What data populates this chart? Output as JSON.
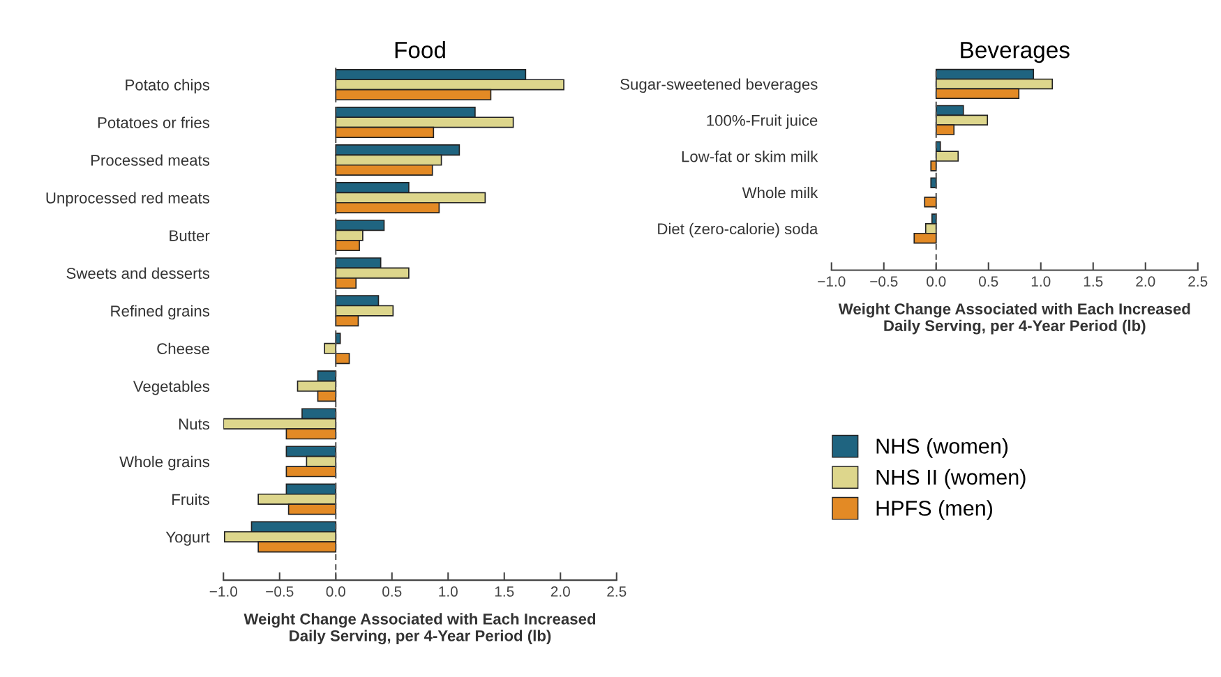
{
  "chart_data": [
    {
      "type": "bar",
      "orientation": "horizontal",
      "title": "Food",
      "xlabel": "Weight Change Associated with Each Increased\nDaily Serving, per 4-Year Period (lb)",
      "categories": [
        "Potato chips",
        "Potatoes or fries",
        "Processed meats",
        "Unprocessed red meats",
        "Butter",
        "Sweets and desserts",
        "Refined grains",
        "Cheese",
        "Vegetables",
        "Nuts",
        "Whole grains",
        "Fruits",
        "Yogurt"
      ],
      "series": [
        {
          "name": "NHS (women)",
          "color": "#1f6480",
          "values": [
            1.69,
            1.24,
            1.1,
            0.65,
            0.43,
            0.4,
            0.38,
            0.04,
            -0.16,
            -0.3,
            -0.44,
            -0.44,
            -0.75
          ]
        },
        {
          "name": "NHS II (women)",
          "color": "#ddd68c",
          "values": [
            2.03,
            1.58,
            0.94,
            1.33,
            0.24,
            0.65,
            0.51,
            -0.1,
            -0.34,
            -1.0,
            -0.26,
            -0.69,
            -0.99
          ]
        },
        {
          "name": "HPFS (men)",
          "color": "#e38a25",
          "values": [
            1.38,
            0.87,
            0.86,
            0.92,
            0.21,
            0.18,
            0.2,
            0.12,
            -0.16,
            -0.44,
            -0.44,
            -0.42,
            -0.69
          ]
        }
      ],
      "xlim": [
        -1.0,
        2.5
      ],
      "xticks": [
        {
          "value": -1.0,
          "label": "−1.0"
        },
        {
          "value": -0.5,
          "label": "−0.5"
        },
        {
          "value": 0,
          "label": "0.0"
        },
        {
          "value": 0.5,
          "label": "0.5"
        },
        {
          "value": 1.0,
          "label": "1.0"
        },
        {
          "value": 1.5,
          "label": "1.5"
        },
        {
          "value": 2.0,
          "label": "2.0"
        },
        {
          "value": 2.5,
          "label": "2.5"
        }
      ],
      "ref_lines": [
        {
          "axis": "x",
          "value": 0,
          "line_style": "dashed",
          "color": "#555555"
        }
      ],
      "legend": "right",
      "grid": false
    },
    {
      "type": "bar",
      "orientation": "horizontal",
      "title": "Beverages",
      "xlabel": "Weight Change Associated with Each Increased\nDaily Serving, per 4-Year Period (lb)",
      "categories": [
        "Sugar-sweetened beverages",
        "100%-Fruit juice",
        "Low-fat or skim milk",
        "Whole milk",
        "Diet (zero-calorie) soda"
      ],
      "series": [
        {
          "color": "#1f6480",
          "values": [
            0.93,
            0.26,
            0.04,
            -0.05,
            -0.04
          ]
        },
        {
          "color": "#ddd68c",
          "values": [
            1.11,
            0.49,
            0.21,
            null,
            -0.1
          ]
        },
        {
          "color": "#e38a25",
          "values": [
            0.79,
            0.17,
            -0.05,
            -0.11,
            -0.21
          ]
        }
      ],
      "xlim": [
        -1.0,
        2.5
      ],
      "xticks": [
        {
          "value": -1.0,
          "label": "−1.0"
        },
        {
          "value": -0.5,
          "label": "−0.5"
        },
        {
          "value": 0,
          "label": "0.0"
        },
        {
          "value": 0.5,
          "label": "0.5"
        },
        {
          "value": 1.0,
          "label": "1.0"
        },
        {
          "value": 1.5,
          "label": "1.5"
        },
        {
          "value": 2.0,
          "label": "2.0"
        },
        {
          "value": 2.5,
          "label": "2.5"
        }
      ],
      "ref_lines": [
        {
          "axis": "x",
          "value": 0,
          "line_style": "dashed",
          "color": "#555555"
        }
      ],
      "grid": false
    }
  ]
}
